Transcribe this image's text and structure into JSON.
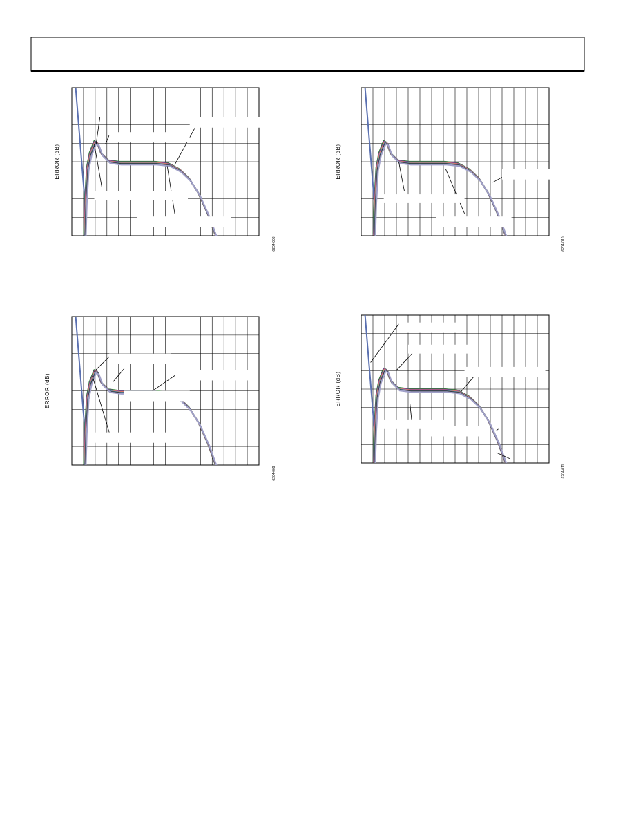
{
  "figures": [
    {
      "y_label": "ERROR (dB)",
      "code": "6204-008"
    },
    {
      "y_label": "ERROR (dB)",
      "code": "6204-010"
    },
    {
      "y_label": "ERROR (dB)",
      "code": "6204-009"
    },
    {
      "y_label": "ERROR (dB)",
      "code": "6204-011"
    }
  ]
}
